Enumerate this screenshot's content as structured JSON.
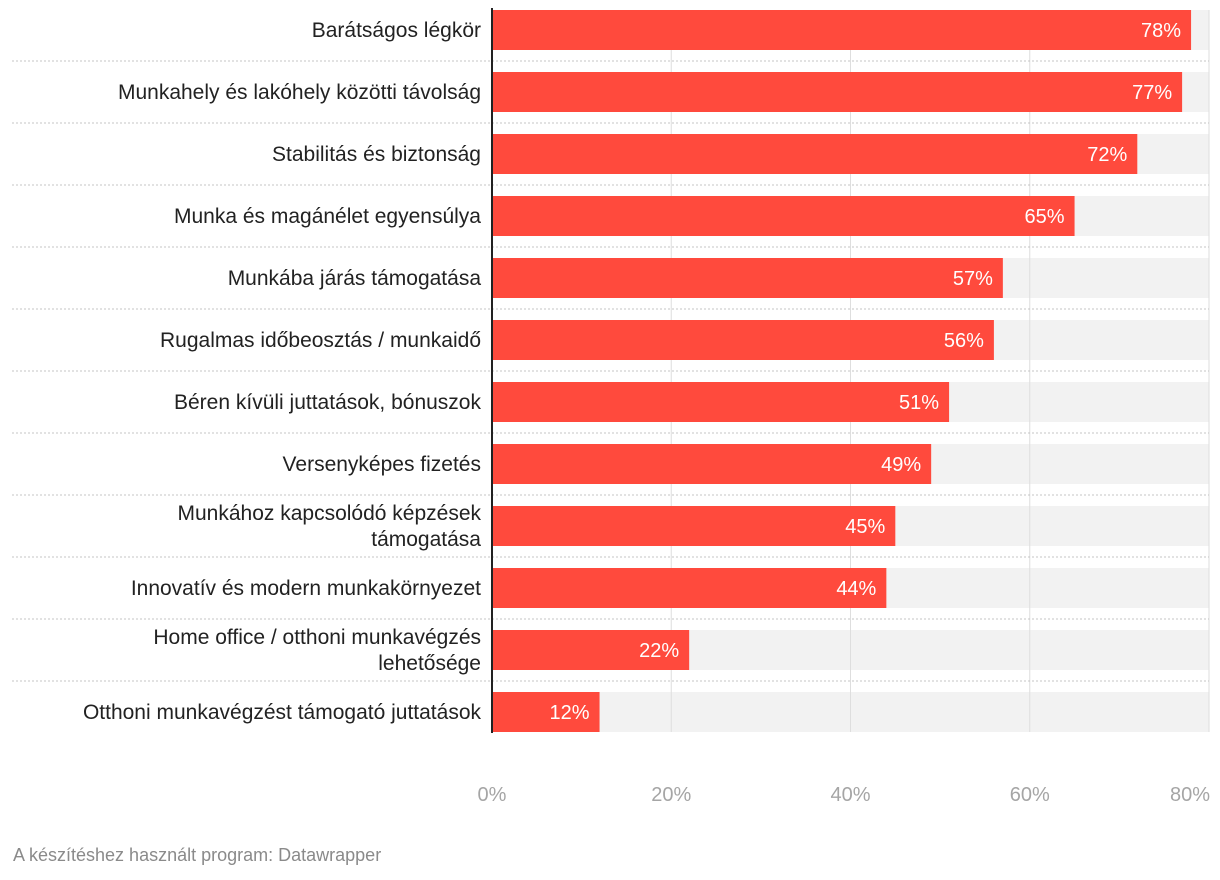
{
  "chart_data": {
    "type": "bar",
    "orientation": "horizontal",
    "categories": [
      [
        "Barátságos légkör"
      ],
      [
        "Munkahely és lakóhely közötti távolság"
      ],
      [
        "Stabilitás és biztonság"
      ],
      [
        "Munka és magánélet egyensúlya"
      ],
      [
        "Munkába járás támogatása"
      ],
      [
        "Rugalmas időbeosztás / munkaidő"
      ],
      [
        "Béren kívüli juttatások, bónuszok"
      ],
      [
        "Versenyképes fizetés"
      ],
      [
        "Munkához kapcsolódó képzések",
        "támogatása"
      ],
      [
        "Innovatív és modern munkakörnyezet"
      ],
      [
        "Home office / otthoni munkavégzés",
        "lehetősége"
      ],
      [
        "Otthoni munkavégzést támogató juttatások"
      ]
    ],
    "values": [
      78,
      77,
      72,
      65,
      57,
      56,
      51,
      49,
      45,
      44,
      22,
      12
    ],
    "value_labels": [
      "78%",
      "77%",
      "72%",
      "65%",
      "57%",
      "56%",
      "51%",
      "49%",
      "45%",
      "44%",
      "22%",
      "12%"
    ],
    "xlim": [
      0,
      80
    ],
    "x_ticks": [
      0,
      20,
      40,
      60,
      80
    ],
    "x_tick_labels": [
      "0%",
      "20%",
      "40%",
      "60%",
      "80%"
    ],
    "grid": true,
    "colors": {
      "bar": "#ff4a3d",
      "track": "#f2f2f2",
      "grid": "#dedede",
      "axis": "#222222"
    }
  },
  "footer": {
    "credit": "A készítéshez használt program: Datawrapper"
  }
}
